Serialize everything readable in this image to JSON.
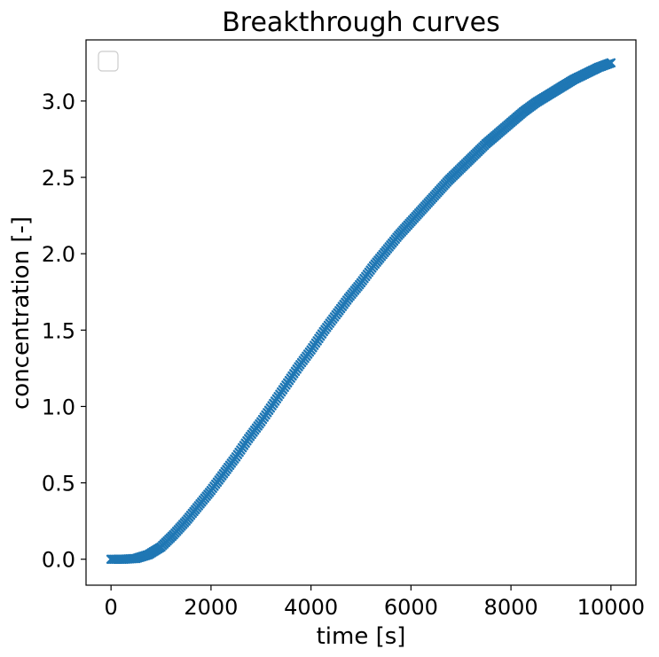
{
  "chart_data": {
    "type": "scatter",
    "title": "Breakthrough curves",
    "xlabel": "time [s]",
    "ylabel": "concentration [-]",
    "xlim": [
      -500,
      10500
    ],
    "ylim": [
      -0.17,
      3.4
    ],
    "xticks": [
      0,
      2000,
      4000,
      6000,
      8000,
      10000
    ],
    "xtick_labels": [
      "0",
      "2000",
      "4000",
      "6000",
      "8000",
      "10000"
    ],
    "yticks": [
      0.0,
      0.5,
      1.0,
      1.5,
      2.0,
      2.5,
      3.0
    ],
    "ytick_labels": [
      "0.0",
      "0.5",
      "1.0",
      "1.5",
      "2.0",
      "2.5",
      "3.0"
    ],
    "grid": false,
    "legend": {
      "location": "upper-left",
      "entries": []
    },
    "marker": "x",
    "color": "#1f77b4",
    "series": [
      {
        "x": [
          0,
          250,
          500,
          750,
          1000,
          1250,
          1500,
          1750,
          2000,
          2250,
          2500,
          2750,
          3000,
          3250,
          3500,
          3750,
          4000,
          4250,
          4500,
          4750,
          5000,
          5250,
          5500,
          5750,
          6000,
          6250,
          6500,
          6750,
          7000,
          7250,
          7500,
          7750,
          8000,
          8250,
          8500,
          8750,
          9000,
          9250,
          9500,
          9750,
          10000
        ],
        "y": [
          0.0,
          0.0,
          0.005,
          0.03,
          0.08,
          0.16,
          0.25,
          0.35,
          0.45,
          0.56,
          0.67,
          0.79,
          0.9,
          1.02,
          1.14,
          1.26,
          1.37,
          1.49,
          1.6,
          1.71,
          1.81,
          1.92,
          2.02,
          2.12,
          2.21,
          2.3,
          2.39,
          2.48,
          2.56,
          2.64,
          2.72,
          2.79,
          2.86,
          2.93,
          2.99,
          3.04,
          3.09,
          3.14,
          3.18,
          3.22,
          3.25
        ]
      }
    ]
  }
}
